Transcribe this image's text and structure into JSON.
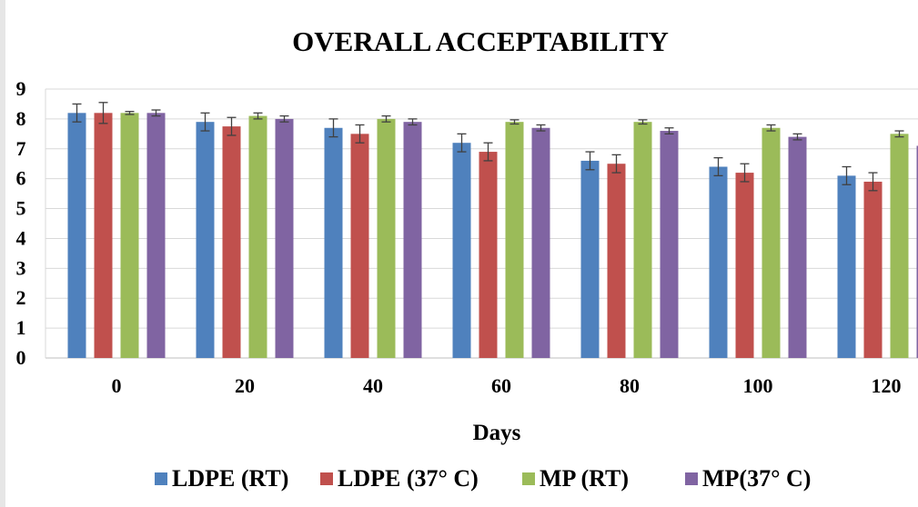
{
  "chart_data": {
    "type": "bar",
    "title": "OVERALL ACCEPTABILITY",
    "xlabel": "Days",
    "ylabel": "",
    "ylim": [
      0,
      9
    ],
    "yticks": [
      "0",
      "1",
      "2",
      "3",
      "4",
      "5",
      "6",
      "7",
      "8",
      "9"
    ],
    "categories": [
      "0",
      "20",
      "40",
      "60",
      "80",
      "100",
      "120"
    ],
    "grid": true,
    "legend_position": "bottom",
    "series": [
      {
        "name": "LDPE (RT)",
        "color": "#4f81bd",
        "values": [
          8.2,
          7.9,
          7.7,
          7.2,
          6.6,
          6.4,
          6.1
        ],
        "errors": [
          0.3,
          0.3,
          0.3,
          0.3,
          0.3,
          0.3,
          0.3
        ]
      },
      {
        "name": "LDPE (37° C)",
        "color": "#c0504d",
        "values": [
          8.2,
          7.75,
          7.5,
          6.9,
          6.5,
          6.2,
          5.9
        ],
        "errors": [
          0.35,
          0.3,
          0.3,
          0.3,
          0.3,
          0.3,
          0.3
        ]
      },
      {
        "name": "MP (RT)",
        "color": "#9bbb59",
        "values": [
          8.2,
          8.1,
          8.0,
          7.9,
          7.9,
          7.7,
          7.5
        ],
        "errors": [
          0.05,
          0.1,
          0.1,
          0.07,
          0.07,
          0.1,
          0.1
        ]
      },
      {
        "name": "MP(37° C)",
        "color": "#8064a2",
        "values": [
          8.2,
          8.0,
          7.9,
          7.7,
          7.6,
          7.4,
          7.1
        ],
        "errors": [
          0.1,
          0.1,
          0.1,
          0.1,
          0.1,
          0.1,
          0.15
        ]
      }
    ]
  }
}
